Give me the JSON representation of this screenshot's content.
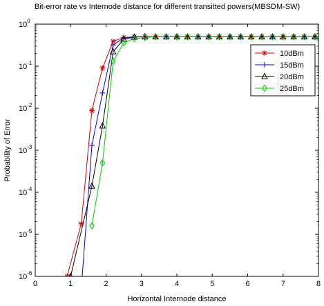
{
  "chart_data": {
    "type": "line",
    "title": "Bit-error rate vs Internode distance for different transitted powers(MBSDM-SW)",
    "xlabel": "Horizontal Internode distance",
    "ylabel": "Probability of Error",
    "xlim": [
      0,
      8
    ],
    "ylim": [
      1e-06,
      1
    ],
    "yscale": "log",
    "xticks": [
      "0",
      "1",
      "2",
      "3",
      "4",
      "5",
      "6",
      "7",
      "8"
    ],
    "yticks": [
      {
        "base": "10",
        "exp": "-6"
      },
      {
        "base": "10",
        "exp": "-5"
      },
      {
        "base": "10",
        "exp": "-4"
      },
      {
        "base": "10",
        "exp": "-3"
      },
      {
        "base": "10",
        "exp": "-2"
      },
      {
        "base": "10",
        "exp": "-1"
      },
      {
        "base": "10",
        "exp": "0"
      }
    ],
    "grid": false,
    "legend_position": "top-right",
    "series": [
      {
        "name": "10dBm",
        "color": "#cc0000",
        "marker": "star",
        "x": [
          0.9,
          1.3,
          1.6,
          1.9,
          2.2,
          2.5,
          2.8,
          3.1,
          3.4,
          3.7,
          4.0,
          4.3,
          4.6,
          4.9,
          5.2,
          5.5,
          5.8,
          6.1,
          6.4,
          6.7,
          7.0,
          7.3,
          7.6,
          7.9
        ],
        "y": [
          1e-06,
          1.8e-05,
          0.0088,
          0.09,
          0.39,
          0.48,
          0.5,
          0.5,
          0.5,
          0.5,
          0.5,
          0.5,
          0.5,
          0.5,
          0.5,
          0.5,
          0.5,
          0.5,
          0.5,
          0.5,
          0.5,
          0.5,
          0.5,
          0.5
        ]
      },
      {
        "name": "15dBm",
        "color": "#0000cc",
        "marker": "plus",
        "x": [
          1.3,
          1.6,
          1.9,
          2.2,
          2.5,
          2.8,
          3.1,
          3.4,
          3.7,
          4.0,
          4.3,
          4.6,
          4.9,
          5.2,
          5.5,
          5.8,
          6.1,
          6.4,
          6.7,
          7.0,
          7.3,
          7.6,
          7.9
        ],
        "y": [
          5e-07,
          0.0013,
          0.023,
          0.32,
          0.47,
          0.5,
          0.5,
          0.5,
          0.5,
          0.5,
          0.5,
          0.5,
          0.5,
          0.5,
          0.5,
          0.5,
          0.5,
          0.5,
          0.5,
          0.5,
          0.5,
          0.5,
          0.5
        ]
      },
      {
        "name": "20dBm",
        "color": "#000000",
        "marker": "triangle",
        "x": [
          1.0,
          1.6,
          1.9,
          2.2,
          2.5,
          2.8,
          3.1,
          3.4,
          3.7,
          4.0,
          4.3,
          4.6,
          4.9,
          5.2,
          5.5,
          5.8,
          6.1,
          6.4,
          6.7,
          7.0,
          7.3,
          7.6,
          7.9
        ],
        "y": [
          1e-06,
          0.00014,
          0.0038,
          0.22,
          0.44,
          0.49,
          0.5,
          0.5,
          0.5,
          0.5,
          0.5,
          0.5,
          0.5,
          0.5,
          0.5,
          0.5,
          0.5,
          0.5,
          0.5,
          0.5,
          0.5,
          0.5,
          0.5
        ]
      },
      {
        "name": "25dBm",
        "color": "#00cc00",
        "marker": "diamond",
        "x": [
          1.6,
          1.9,
          2.2,
          2.5,
          2.8,
          3.1,
          3.4,
          3.7,
          4.0,
          4.3,
          4.6,
          4.9,
          5.2,
          5.5,
          5.8,
          6.1,
          6.4,
          6.7,
          7.0,
          7.3,
          7.6,
          7.9
        ],
        "y": [
          1.6e-05,
          0.0005,
          0.13,
          0.36,
          0.45,
          0.48,
          0.5,
          0.5,
          0.5,
          0.5,
          0.5,
          0.5,
          0.5,
          0.5,
          0.5,
          0.5,
          0.5,
          0.5,
          0.5,
          0.5,
          0.5,
          0.5
        ]
      }
    ]
  }
}
